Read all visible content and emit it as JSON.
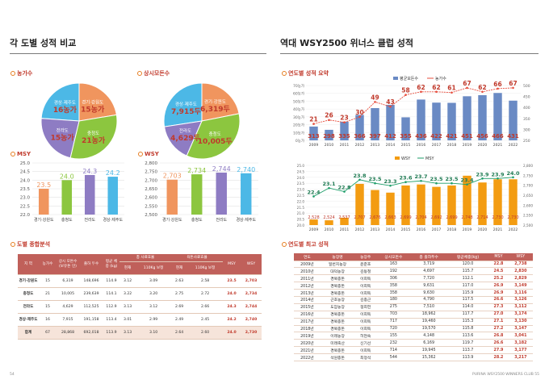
{
  "left": {
    "title": "각 도별 성적 비교",
    "pie1": {
      "subtitle": "농가수",
      "slices": [
        {
          "label": "경상·제주도",
          "value": "16농가",
          "num": 16,
          "color": "#4cb8e6"
        },
        {
          "label": "경기·강원도",
          "value": "15농가",
          "num": 15,
          "color": "#f0955e"
        },
        {
          "label": "충청도",
          "value": "21농가",
          "num": 21,
          "color": "#8cc63f"
        },
        {
          "label": "전라도",
          "value": "15농가",
          "num": 15,
          "color": "#8e7cc3"
        }
      ]
    },
    "pie2": {
      "subtitle": "상시모돈수",
      "slices": [
        {
          "label": "경상·제주도",
          "value": "7,915두",
          "num": 7915,
          "color": "#4cb8e6"
        },
        {
          "label": "경기·강원도",
          "value": "6,319두",
          "num": 6319,
          "color": "#f0955e"
        },
        {
          "label": "충청도",
          "value": "10,005두",
          "num": 10005,
          "color": "#8cc63f"
        },
        {
          "label": "전라도",
          "value": "4,629두",
          "num": 4629,
          "color": "#8e7cc3"
        }
      ]
    },
    "msy_chart": {
      "subtitle": "MSY",
      "type": "bar",
      "categories": [
        "경기·강원도",
        "충청도",
        "전라도",
        "경상·제주도"
      ],
      "values": [
        23.5,
        24.0,
        24.3,
        24.2
      ],
      "value_labels": [
        "23.5",
        "24.0",
        "24.3",
        "24.2"
      ],
      "ylim": [
        22.0,
        25.0
      ],
      "ticks": [
        "22.0",
        "22.5",
        "23.0",
        "23.5",
        "24.0",
        "24.5",
        "25.0"
      ]
    },
    "wsy_chart": {
      "subtitle": "WSY",
      "type": "bar",
      "categories": [
        "경기·강원도",
        "충청도",
        "전라도",
        "경상·제주도"
      ],
      "values": [
        2703,
        2734,
        2744,
        2740
      ],
      "value_labels": [
        "2,703",
        "2,734",
        "2,744",
        "2,740"
      ],
      "ylim": [
        2500,
        2800
      ],
      "ticks": [
        "2,500",
        "2,550",
        "2,600",
        "2,650",
        "2,700",
        "2,750",
        "2,800"
      ]
    },
    "table": {
      "subtitle": "도별 종합분석",
      "h": [
        "지 역",
        "농가수",
        "상시 모돈수 (보유돈 인)",
        "출하 두수",
        "평균 체중 (kg)",
        "총 사료효율",
        "육돈사료효율",
        "MSY",
        "WSY",
        "현재",
        "110Kg 보정"
      ],
      "rows": [
        [
          "경기·강원도",
          "15",
          "6,319",
          "148,696",
          "114.9",
          "3.12",
          "3.09",
          "2.63",
          "2.58",
          "23.5",
          "2,703"
        ],
        [
          "충청도",
          "21",
          "10,005",
          "239,639",
          "114.1",
          "3.22",
          "3.20",
          "2.75",
          "2.72",
          "24.0",
          "2,734"
        ],
        [
          "전라도",
          "15",
          "4,629",
          "112,525",
          "112.9",
          "3.13",
          "3.12",
          "2.69",
          "2.66",
          "24.3",
          "2,744"
        ],
        [
          "경상·제주도",
          "16",
          "7,915",
          "191,158",
          "113.4",
          "3.01",
          "2.99",
          "2.49",
          "2.45",
          "24.2",
          "2,740"
        ],
        [
          "합계",
          "67",
          "28,868",
          "692,018",
          "113.9",
          "3.13",
          "3.10",
          "2.64",
          "2.60",
          "24.0",
          "2,730"
        ]
      ]
    },
    "page": "54"
  },
  "right": {
    "title": "역대 WSY2500 위너스 클럽 성적",
    "summary": {
      "subtitle": "연도별 성적 요약",
      "legend_bar": "평균모돈수",
      "legend_line": "농가수",
      "years": [
        "2009",
        "2010",
        "2011",
        "2012",
        "2013",
        "2014",
        "2015",
        "2016",
        "2017",
        "2018",
        "2019",
        "2020",
        "2021",
        "2022"
      ],
      "sows": [
        313,
        298,
        335,
        366,
        397,
        412,
        355,
        436,
        422,
        421,
        451,
        456,
        466,
        431
      ],
      "farms": [
        21,
        26,
        23,
        30,
        49,
        43,
        58,
        62,
        62,
        61,
        67,
        62,
        66,
        67
      ],
      "y_left": [
        "0농가",
        "10농가",
        "20농가",
        "30농가",
        "40농가",
        "50농가",
        "60농가",
        "70농가"
      ],
      "y_right": [
        "250",
        "300",
        "350",
        "400",
        "450",
        "500"
      ]
    },
    "msywsy": {
      "legend_a": "WSY",
      "legend_b": "MSY",
      "years": [
        "2009",
        "2010",
        "2011",
        "2012",
        "2013",
        "2014",
        "2015",
        "2016",
        "2017",
        "2018",
        "2019",
        "2020",
        "2021",
        "2022"
      ],
      "wsy": [
        2528,
        2524,
        2537,
        2707,
        2676,
        2663,
        2699,
        2704,
        2692,
        2699,
        2748,
        2714,
        2730,
        2730
      ],
      "msy": [
        22.4,
        23.1,
        22.8,
        23.8,
        23.5,
        23.3,
        23.6,
        23.7,
        23.5,
        23.5,
        23.4,
        23.9,
        23.9,
        24.0
      ],
      "msy_labels": [
        "22.4",
        "23.1",
        "22.8",
        "23.8",
        "23.5",
        "23.3",
        "23.6",
        "23.7",
        "23.5",
        "23.5",
        "23.4",
        "23.9",
        "23.9",
        "24.0"
      ],
      "wsy_labels": [
        "2,528",
        "2,524",
        "2,537",
        "2,707",
        "2,676",
        "2,663",
        "2,699",
        "2,704",
        "2,692",
        "2,699",
        "2,748",
        "2,714",
        "2,730",
        "2,730"
      ],
      "y_left": [
        "20.0",
        "20.5",
        "21.0",
        "21.5",
        "22.0",
        "22.5",
        "23.0",
        "23.5",
        "24.0",
        "24.5",
        "25.0"
      ],
      "y_right": [
        "2,500",
        "2,550",
        "2,600",
        "2,650",
        "2,700",
        "2,750",
        "2,800"
      ]
    },
    "table": {
      "subtitle": "연도별 최고 성적",
      "h": [
        "연도",
        "농장명",
        "농장주",
        "상시모돈수",
        "총 출하두수",
        "평균체중(kg)",
        "MSY",
        "WSY"
      ],
      "rows": [
        [
          "2009년",
          "일번지농장",
          "윤준호",
          "163",
          "3,719",
          "120.0",
          "22.8",
          "2,738"
        ],
        [
          "2010년",
          "대덕농장",
          "김동철",
          "192",
          "4,697",
          "115.7",
          "24.5",
          "2,830"
        ],
        [
          "2011년",
          "경북종돈",
          "이희득",
          "306",
          "7,720",
          "112.1",
          "25.2",
          "2,829"
        ],
        [
          "2012년",
          "경북종돈",
          "이희득",
          "358",
          "9,631",
          "117.0",
          "26.9",
          "3,149"
        ],
        [
          "2013년",
          "경북종돈",
          "이희득",
          "358",
          "9,630",
          "115.9",
          "26.9",
          "3,116"
        ],
        [
          "2014년",
          "근호농장",
          "김종근",
          "180",
          "4,790",
          "117.5",
          "26.6",
          "3,126"
        ],
        [
          "2015년",
          "도암농장",
          "정희헌",
          "275",
          "7,510",
          "114.0",
          "27.3",
          "3,112"
        ],
        [
          "2016년",
          "경북종돈",
          "이희득",
          "703",
          "18,962",
          "117.7",
          "27.0",
          "3,174"
        ],
        [
          "2017년",
          "경북종돈",
          "이희득",
          "717",
          "19,460",
          "115.3",
          "27.1",
          "3,130"
        ],
        [
          "2018년",
          "경북종돈",
          "이희득",
          "720",
          "19,570",
          "115.8",
          "27.2",
          "3,147"
        ],
        [
          "2019년",
          "이레농장",
          "허현숙",
          "155",
          "4,148",
          "113.6",
          "26.8",
          "3,041"
        ],
        [
          "2020년",
          "미래축산",
          "신기선",
          "232",
          "6,169",
          "119.7",
          "26.6",
          "3,182"
        ],
        [
          "2021년",
          "경북종돈",
          "이희득",
          "714",
          "19,945",
          "113.7",
          "27.9",
          "3,177"
        ],
        [
          "2022년",
          "석원종돈",
          "최정석",
          "544",
          "15,362",
          "113.9",
          "28.2",
          "3,217"
        ]
      ]
    },
    "page": "PURINA WSY2500 WINNERS CLUB 55"
  }
}
